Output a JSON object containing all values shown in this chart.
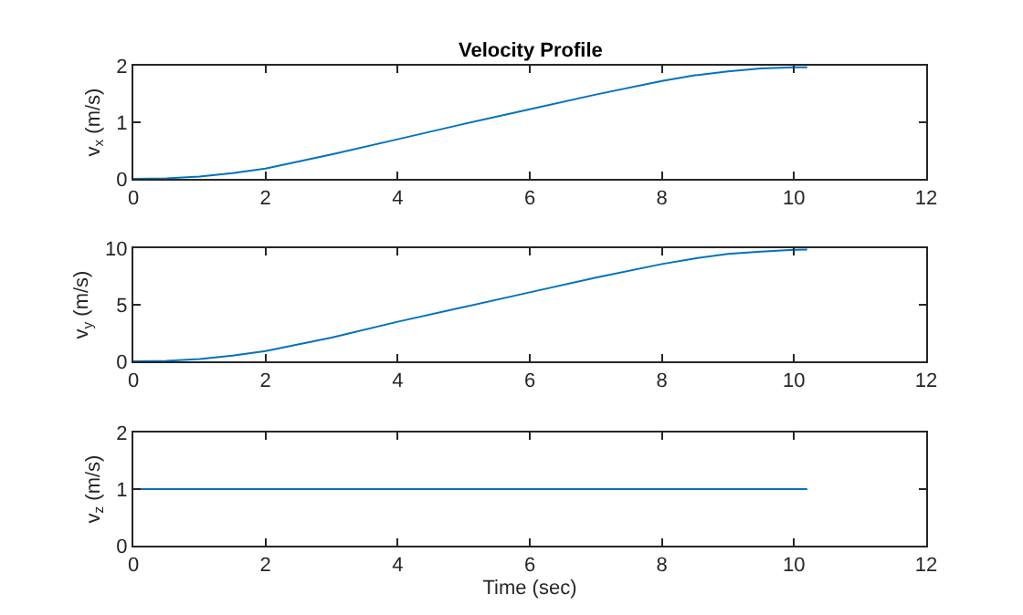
{
  "chart_data": [
    {
      "type": "line",
      "title": "Velocity Profile",
      "ylabel": "v$_{x}$ (m/s)",
      "x": [
        0,
        0.5,
        1,
        1.5,
        2,
        3,
        4,
        5,
        6,
        7,
        8,
        8.5,
        9,
        9.5,
        10,
        10.2
      ],
      "series": [
        {
          "color": "#0072bd",
          "values": [
            0,
            0.01,
            0.04,
            0.1,
            0.18,
            0.43,
            0.7,
            0.97,
            1.23,
            1.49,
            1.73,
            1.83,
            1.9,
            1.95,
            1.97,
            1.97
          ]
        }
      ],
      "xlim": [
        0,
        12
      ],
      "xticks": [
        0,
        2,
        4,
        6,
        8,
        10,
        12
      ],
      "ylim": [
        0,
        2
      ],
      "yticks": [
        0,
        1,
        2
      ],
      "grid": false
    },
    {
      "type": "line",
      "ylabel": "v$_{y}$ (m/s)",
      "x": [
        0,
        0.5,
        1,
        1.5,
        2,
        3,
        4,
        5,
        6,
        7,
        8,
        8.5,
        9,
        9.5,
        10,
        10.2
      ],
      "series": [
        {
          "color": "#0072bd",
          "values": [
            0,
            0.05,
            0.2,
            0.5,
            0.9,
            2.1,
            3.5,
            4.8,
            6.1,
            7.4,
            8.6,
            9.1,
            9.5,
            9.7,
            9.85,
            9.87
          ]
        }
      ],
      "xlim": [
        0,
        12
      ],
      "xticks": [
        0,
        2,
        4,
        6,
        8,
        10,
        12
      ],
      "ylim": [
        0,
        10
      ],
      "yticks": [
        0,
        5,
        10
      ],
      "grid": false
    },
    {
      "type": "line",
      "ylabel": "v$_{z}$ (m/s)",
      "xlabel": "Time (sec)",
      "x": [
        0,
        10.2
      ],
      "series": [
        {
          "color": "#0072bd",
          "values": [
            1,
            1
          ]
        }
      ],
      "xlim": [
        0,
        12
      ],
      "xticks": [
        0,
        2,
        4,
        6,
        8,
        10,
        12
      ],
      "ylim": [
        0,
        2
      ],
      "yticks": [
        0,
        1,
        2
      ],
      "grid": false
    }
  ]
}
